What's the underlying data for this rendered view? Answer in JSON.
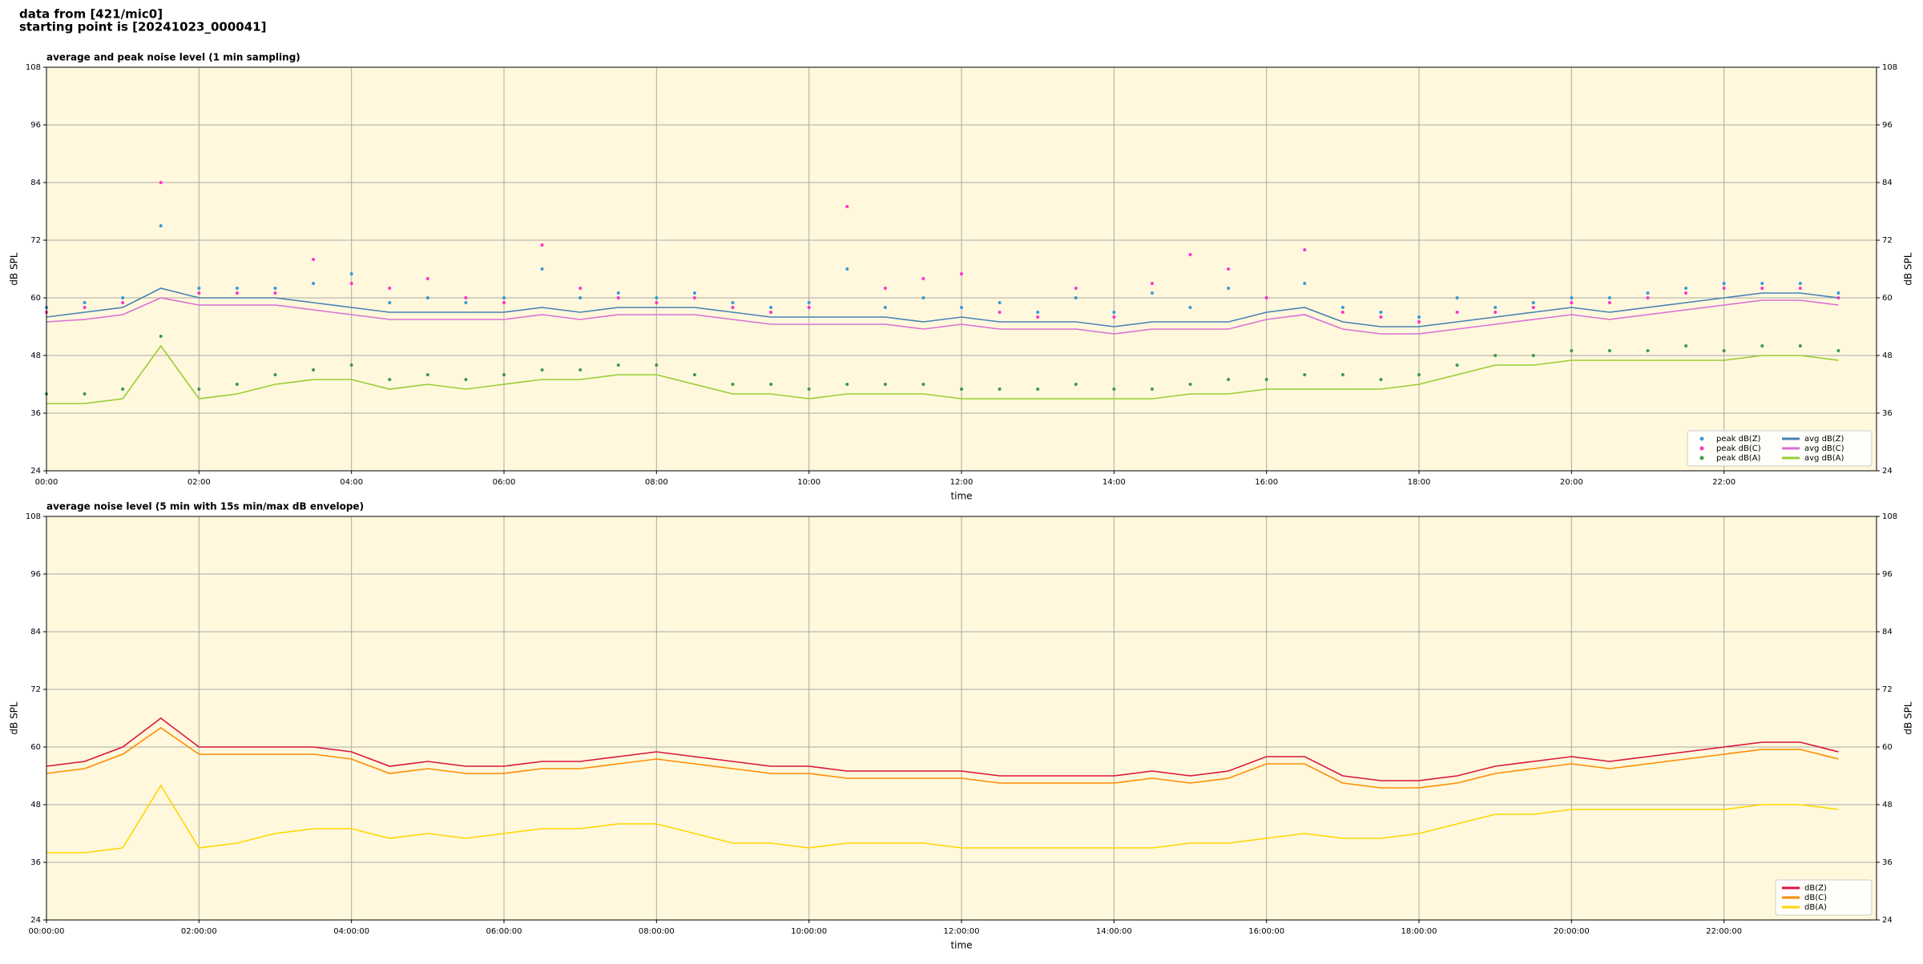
{
  "header": {
    "lines": [
      "data from [421/mic0]",
      "starting point is [20241023_000041]"
    ]
  },
  "chart_data": [
    {
      "type": "line",
      "title": "average and peak noise level (1 min sampling)",
      "xlabel": "time",
      "ylabel": "dB SPL",
      "xlim": [
        0,
        24
      ],
      "ylim": [
        24,
        108
      ],
      "yticks": [
        24,
        36,
        48,
        60,
        72,
        84,
        96,
        108
      ],
      "xticks": [
        {
          "value": 0,
          "label": "00:00"
        },
        {
          "value": 2,
          "label": "02:00"
        },
        {
          "value": 4,
          "label": "04:00"
        },
        {
          "value": 6,
          "label": "06:00"
        },
        {
          "value": 8,
          "label": "08:00"
        },
        {
          "value": 10,
          "label": "10:00"
        },
        {
          "value": 12,
          "label": "12:00"
        },
        {
          "value": 14,
          "label": "14:00"
        },
        {
          "value": 16,
          "label": "16:00"
        },
        {
          "value": 18,
          "label": "18:00"
        },
        {
          "value": 20,
          "label": "20:00"
        },
        {
          "value": 22,
          "label": "22:00"
        }
      ],
      "grid": true,
      "background": "#fff8dc",
      "legend": "lower right",
      "legend_columns": 2,
      "x": [
        0,
        0.5,
        1,
        1.5,
        2,
        2.5,
        3,
        3.5,
        4,
        4.5,
        5,
        5.5,
        6,
        6.5,
        7,
        7.5,
        8,
        8.5,
        9,
        9.5,
        10,
        10.5,
        11,
        11.5,
        12,
        12.5,
        13,
        13.5,
        14,
        14.5,
        15,
        15.5,
        16,
        16.5,
        17,
        17.5,
        18,
        18.5,
        19,
        19.5,
        20,
        20.5,
        21,
        21.5,
        22,
        22.5,
        23,
        23.5
      ],
      "series": [
        {
          "name": "peak dB(Z)",
          "type": "scatter",
          "color": "#3a9ad9",
          "values": [
            58,
            59,
            60,
            75,
            62,
            62,
            62,
            63,
            65,
            59,
            60,
            59,
            60,
            66,
            60,
            61,
            60,
            61,
            59,
            58,
            59,
            66,
            58,
            60,
            58,
            59,
            57,
            60,
            57,
            61,
            58,
            62,
            60,
            63,
            58,
            57,
            56,
            60,
            58,
            59,
            60,
            60,
            61,
            62,
            63,
            63,
            63,
            61
          ]
        },
        {
          "name": "peak dB(C)",
          "type": "scatter",
          "color": "#ff33cc",
          "values": [
            57,
            58,
            59,
            84,
            61,
            61,
            61,
            68,
            63,
            62,
            64,
            60,
            59,
            71,
            62,
            60,
            59,
            60,
            58,
            57,
            58,
            79,
            62,
            64,
            65,
            57,
            56,
            62,
            56,
            63,
            69,
            66,
            60,
            70,
            57,
            56,
            55,
            57,
            57,
            58,
            59,
            59,
            60,
            61,
            62,
            62,
            62,
            60
          ]
        },
        {
          "name": "peak dB(A)",
          "type": "scatter",
          "color": "#3c9a4c",
          "values": [
            40,
            40,
            41,
            52,
            41,
            42,
            44,
            45,
            46,
            43,
            44,
            43,
            44,
            45,
            45,
            46,
            46,
            44,
            42,
            42,
            41,
            42,
            42,
            42,
            41,
            41,
            41,
            42,
            41,
            41,
            42,
            43,
            43,
            44,
            44,
            43,
            44,
            46,
            48,
            48,
            49,
            49,
            49,
            50,
            49,
            50,
            50,
            49
          ]
        },
        {
          "name": "avg dB(Z)",
          "type": "line",
          "color": "#4682b4",
          "values": [
            56,
            57,
            58,
            62,
            60,
            60,
            60,
            59,
            58,
            57,
            57,
            57,
            57,
            58,
            57,
            58,
            58,
            58,
            57,
            56,
            56,
            56,
            56,
            55,
            56,
            55,
            55,
            55,
            54,
            55,
            55,
            55,
            57,
            58,
            55,
            54,
            54,
            55,
            56,
            57,
            58,
            57,
            58,
            59,
            60,
            61,
            61,
            60
          ]
        },
        {
          "name": "avg dB(C)",
          "type": "line",
          "color": "#da70d6",
          "values": [
            55,
            55.5,
            56.5,
            60,
            58.5,
            58.5,
            58.5,
            57.5,
            56.5,
            55.5,
            55.5,
            55.5,
            55.5,
            56.5,
            55.5,
            56.5,
            56.5,
            56.5,
            55.5,
            54.5,
            54.5,
            54.5,
            54.5,
            53.5,
            54.5,
            53.5,
            53.5,
            53.5,
            52.5,
            53.5,
            53.5,
            53.5,
            55.5,
            56.5,
            53.5,
            52.5,
            52.5,
            53.5,
            54.5,
            55.5,
            56.5,
            55.5,
            56.5,
            57.5,
            58.5,
            59.5,
            59.5,
            58.5
          ]
        },
        {
          "name": "avg dB(A)",
          "type": "line",
          "color": "#9acd32",
          "values": [
            38,
            38,
            39,
            50,
            39,
            40,
            42,
            43,
            43,
            41,
            42,
            41,
            42,
            43,
            43,
            44,
            44,
            42,
            40,
            40,
            39,
            40,
            40,
            40,
            39,
            39,
            39,
            39,
            39,
            39,
            40,
            40,
            41,
            41,
            41,
            41,
            42,
            44,
            46,
            46,
            47,
            47,
            47,
            47,
            47,
            48,
            48,
            47
          ]
        }
      ]
    },
    {
      "type": "line",
      "title": "average noise level (5 min with 15s min/max dB envelope)",
      "xlabel": "time",
      "ylabel": "dB SPL",
      "xlim": [
        0,
        24
      ],
      "ylim": [
        24,
        108
      ],
      "yticks": [
        24,
        36,
        48,
        60,
        72,
        84,
        96,
        108
      ],
      "xticks": [
        {
          "value": 0,
          "label": "00:00:00"
        },
        {
          "value": 2,
          "label": "02:00:00"
        },
        {
          "value": 4,
          "label": "04:00:00"
        },
        {
          "value": 6,
          "label": "06:00:00"
        },
        {
          "value": 8,
          "label": "08:00:00"
        },
        {
          "value": 10,
          "label": "10:00:00"
        },
        {
          "value": 12,
          "label": "12:00:00"
        },
        {
          "value": 14,
          "label": "14:00:00"
        },
        {
          "value": 16,
          "label": "16:00:00"
        },
        {
          "value": 18,
          "label": "18:00:00"
        },
        {
          "value": 20,
          "label": "20:00:00"
        },
        {
          "value": 22,
          "label": "22:00:00"
        }
      ],
      "grid": true,
      "background": "#fff8dc",
      "legend": "lower right",
      "legend_columns": 1,
      "x": [
        0,
        0.5,
        1,
        1.5,
        2,
        2.5,
        3,
        3.5,
        4,
        4.5,
        5,
        5.5,
        6,
        6.5,
        7,
        7.5,
        8,
        8.5,
        9,
        9.5,
        10,
        10.5,
        11,
        11.5,
        12,
        12.5,
        13,
        13.5,
        14,
        14.5,
        15,
        15.5,
        16,
        16.5,
        17,
        17.5,
        18,
        18.5,
        19,
        19.5,
        20,
        20.5,
        21,
        21.5,
        22,
        22.5,
        23,
        23.5
      ],
      "series": [
        {
          "name": "dB(Z)",
          "type": "line",
          "color": "#dc143c",
          "values": [
            56,
            57,
            60,
            66,
            60,
            60,
            60,
            60,
            59,
            56,
            57,
            56,
            56,
            57,
            57,
            58,
            59,
            58,
            57,
            56,
            56,
            55,
            55,
            55,
            55,
            54,
            54,
            54,
            54,
            55,
            54,
            55,
            58,
            58,
            54,
            53,
            53,
            54,
            56,
            57,
            58,
            57,
            58,
            59,
            60,
            61,
            61,
            59
          ]
        },
        {
          "name": "dB(C)",
          "type": "line",
          "color": "#ff8c00",
          "values": [
            54.5,
            55.5,
            58.5,
            64,
            58.5,
            58.5,
            58.5,
            58.5,
            57.5,
            54.5,
            55.5,
            54.5,
            54.5,
            55.5,
            55.5,
            56.5,
            57.5,
            56.5,
            55.5,
            54.5,
            54.5,
            53.5,
            53.5,
            53.5,
            53.5,
            52.5,
            52.5,
            52.5,
            52.5,
            53.5,
            52.5,
            53.5,
            56.5,
            56.5,
            52.5,
            51.5,
            51.5,
            52.5,
            54.5,
            55.5,
            56.5,
            55.5,
            56.5,
            57.5,
            58.5,
            59.5,
            59.5,
            57.5
          ]
        },
        {
          "name": "dB(A)",
          "type": "line",
          "color": "#ffd700",
          "values": [
            38,
            38,
            39,
            52,
            39,
            40,
            42,
            43,
            43,
            41,
            42,
            41,
            42,
            43,
            43,
            44,
            44,
            42,
            40,
            40,
            39,
            40,
            40,
            40,
            39,
            39,
            39,
            39,
            39,
            39,
            40,
            40,
            41,
            42,
            41,
            41,
            42,
            44,
            46,
            46,
            47,
            47,
            47,
            47,
            47,
            48,
            48,
            47
          ]
        }
      ]
    }
  ]
}
